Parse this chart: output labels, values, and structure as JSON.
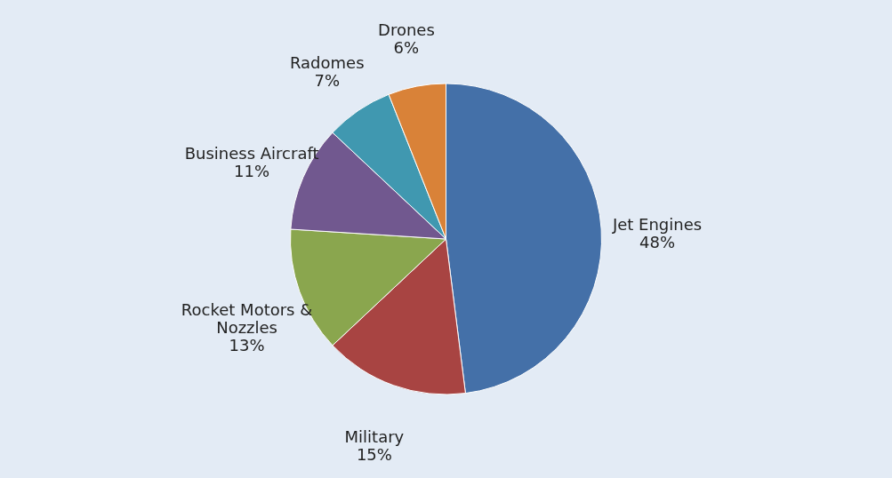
{
  "chart_data": {
    "type": "pie",
    "categories": [
      "Jet Engines",
      "Military",
      "Rocket Motors & Nozzles",
      "Business Aircraft",
      "Radomes",
      "Drones"
    ],
    "values": [
      48,
      15,
      13,
      11,
      7,
      6
    ],
    "value_labels": [
      "48%",
      "15%",
      "13%",
      "11%",
      "7%",
      "6%"
    ],
    "colors": [
      "#4470a8",
      "#a84442",
      "#8aa64e",
      "#71588f",
      "#4098b0",
      "#d98238"
    ],
    "legend": false
  }
}
